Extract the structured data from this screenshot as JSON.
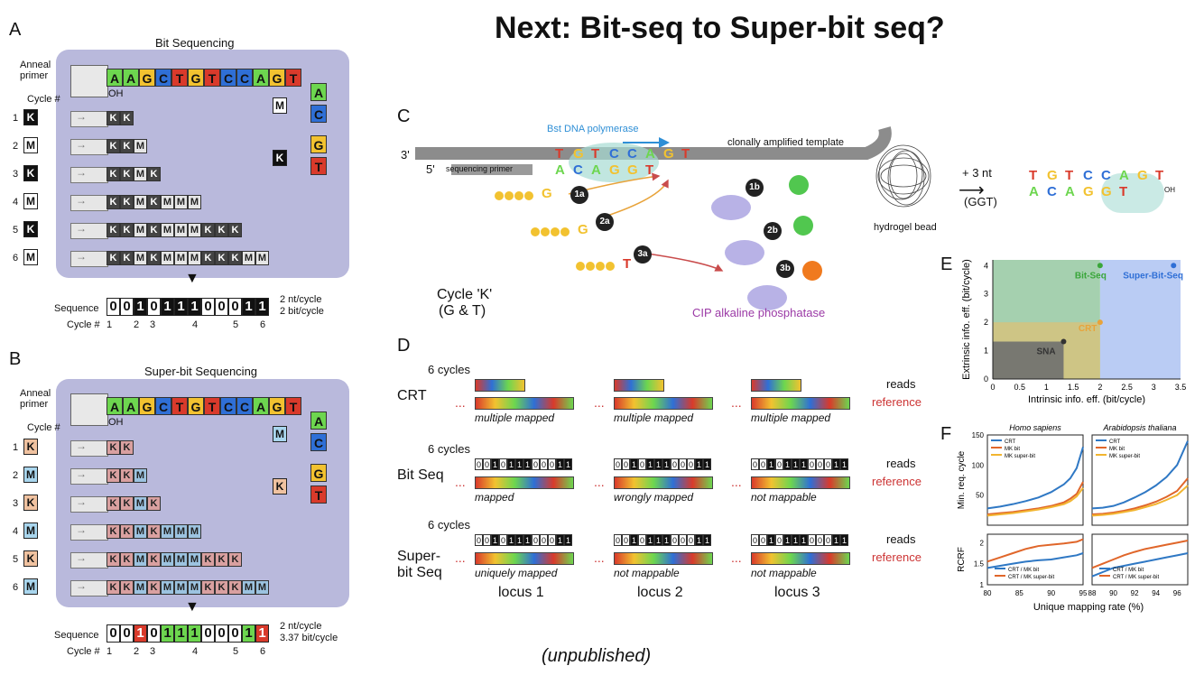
{
  "title": "Next: Bit-seq to Super-bit seq?",
  "footer": "(unpublished)",
  "colors": {
    "A": "#6dd64f",
    "C": "#2f6fd6",
    "G": "#f2c230",
    "T": "#d93a2b",
    "panel": "#b9b9dc",
    "bitseq": "#8fc49b",
    "superbit": "#9db7f0",
    "crt": "#d8c27a",
    "sna": "#6f6f6f"
  },
  "panelA": {
    "label": "A",
    "title": "Bit Sequencing",
    "template": [
      "A",
      "A",
      "G",
      "C",
      "T",
      "G",
      "T",
      "C",
      "C",
      "A",
      "G",
      "T"
    ],
    "anneal_primer": "Anneal primer",
    "oh": "OH",
    "cycle_header": "Cycle #",
    "cycles": [
      {
        "n": "1",
        "letter": "K",
        "extended": [
          "K",
          "K"
        ]
      },
      {
        "n": "2",
        "letter": "M",
        "extended": [
          "K",
          "K",
          "M"
        ]
      },
      {
        "n": "3",
        "letter": "K",
        "extended": [
          "K",
          "K",
          "M",
          "K"
        ]
      },
      {
        "n": "4",
        "letter": "M",
        "extended": [
          "K",
          "K",
          "M",
          "K",
          "M",
          "M",
          "M"
        ]
      },
      {
        "n": "5",
        "letter": "K",
        "extended": [
          "K",
          "K",
          "M",
          "K",
          "M",
          "M",
          "M",
          "K",
          "K",
          "K"
        ]
      },
      {
        "n": "6",
        "letter": "M",
        "extended": [
          "K",
          "K",
          "M",
          "K",
          "M",
          "M",
          "M",
          "K",
          "K",
          "K",
          "M",
          "M"
        ]
      }
    ],
    "legend": [
      {
        "letter": "M",
        "bases": [
          "A",
          "C"
        ]
      },
      {
        "letter": "K",
        "bases": [
          "G",
          "T"
        ]
      }
    ],
    "sequence_label": "Sequence",
    "sequence": [
      "0",
      "0",
      "1",
      "0",
      "1",
      "1",
      "1",
      "0",
      "0",
      "0",
      "1",
      "1"
    ],
    "cycle_label": "Cycle #",
    "cycle_numbers": [
      "1",
      "2",
      "3",
      "4",
      "5",
      "6"
    ],
    "rate1": "2 nt/cycle",
    "rate2": "2 bit/cycle"
  },
  "panelB": {
    "label": "B",
    "title": "Super-bit Sequencing",
    "template": [
      "A",
      "A",
      "G",
      "C",
      "T",
      "G",
      "T",
      "C",
      "C",
      "A",
      "G",
      "T"
    ],
    "anneal_primer": "Anneal primer",
    "oh": "OH",
    "cycle_header": "Cycle #",
    "cycles": [
      {
        "n": "1",
        "letter": "K"
      },
      {
        "n": "2",
        "letter": "M"
      },
      {
        "n": "3",
        "letter": "K"
      },
      {
        "n": "4",
        "letter": "M"
      },
      {
        "n": "5",
        "letter": "K"
      },
      {
        "n": "6",
        "letter": "M"
      }
    ],
    "legend": [
      {
        "letter": "M",
        "bases": [
          "A",
          "C"
        ]
      },
      {
        "letter": "K",
        "bases": [
          "G",
          "T"
        ]
      }
    ],
    "sequence_label": "Sequence",
    "sequence": [
      "0",
      "0",
      "1",
      "0",
      "1",
      "1",
      "1",
      "0",
      "0",
      "0",
      "1",
      "1"
    ],
    "cycle_label": "Cycle #",
    "cycle_numbers": [
      "1",
      "2",
      "3",
      "4",
      "5",
      "6"
    ],
    "rate1": "2 nt/cycle",
    "rate2": "3.37 bit/cycle"
  },
  "panelC": {
    "label": "C",
    "three_prime": "3'",
    "five_prime": "5'",
    "polymerase": "Bst DNA polymerase",
    "template_label": "clonally amplified template",
    "primer_label": "sequencing primer",
    "top_strand": [
      "T",
      "G",
      "T",
      "C",
      "C",
      "A",
      "G",
      "T"
    ],
    "bottom_strand": [
      "A",
      "C",
      "A",
      "G",
      "G",
      "T"
    ],
    "steps": [
      "1a",
      "2a",
      "3a",
      "1b",
      "2b",
      "3b"
    ],
    "nuc_letters": [
      "G",
      "G",
      "T"
    ],
    "cycle_label": "Cycle 'K'",
    "cycle_sub": "(G & T)",
    "phosphatase": "CIP alkaline phosphatase",
    "hydrogel": "hydrogel bead",
    "plus_nt": "+ 3 nt",
    "ggt": "(GGT)",
    "result_top": [
      "T",
      "G",
      "T",
      "C",
      "C",
      "A",
      "G",
      "T"
    ],
    "result_bottom": [
      "A",
      "C",
      "A",
      "G",
      "G",
      "T"
    ],
    "result_oh": "OH"
  },
  "panelD": {
    "label": "D",
    "cycles_label": "6 cycles",
    "rows": [
      {
        "name": "CRT",
        "loci": [
          "multiple mapped",
          "multiple mapped",
          "multiple mapped"
        ]
      },
      {
        "name": "Bit Seq",
        "loci": [
          "mapped",
          "wrongly mapped",
          "not mappable"
        ]
      },
      {
        "name": "Super-bit Seq",
        "loci": [
          "uniquely mapped",
          "not mappable",
          "not mappable"
        ]
      }
    ],
    "reads": "reads",
    "reference": "reference",
    "dots": "...",
    "locus_labels": [
      "locus 1",
      "locus 2",
      "locus 3"
    ],
    "bit_reads": [
      "0",
      "0",
      "1",
      "0",
      "1",
      "1",
      "1",
      "0",
      "0",
      "0",
      "1",
      "1"
    ]
  },
  "panelE": {
    "label": "E",
    "xlabel": "Intrinsic info. eff. (bit/cycle)",
    "ylabel": "Extrinsic info. eff. (bit/cycle)",
    "xticks": [
      "0",
      "0.5",
      "1",
      "1.5",
      "2",
      "2.5",
      "3",
      "3.5"
    ],
    "yticks": [
      "0",
      "1",
      "2",
      "3",
      "4"
    ],
    "regions": [
      {
        "name": "Bit-Seq",
        "x": 2,
        "y": 4
      },
      {
        "name": "Super-Bit-Seq",
        "x": 3.37,
        "y": 4
      },
      {
        "name": "CRT",
        "x": 2,
        "y": 2
      },
      {
        "name": "SNA",
        "x": 1.32,
        "y": 1.32
      }
    ]
  },
  "panelF": {
    "label": "F",
    "species": [
      "Homo sapiens",
      "Arabidopsis thaliana"
    ],
    "ylabel_top": "Min. req. cycle",
    "ylabel_bottom": "RCRF",
    "xlabel": "Unique mapping rate (%)",
    "legend_top": [
      "CRT",
      "MK bit",
      "MK super-bit"
    ],
    "legend_bottom": [
      "CRT / MK bit",
      "CRT / MK super-bit"
    ],
    "left_xticks": [
      "80",
      "85",
      "90",
      "95"
    ],
    "right_xticks": [
      "88",
      "90",
      "92",
      "94",
      "96"
    ],
    "top_yticks": [
      "50",
      "100",
      "150"
    ],
    "bottom_yticks": [
      "1",
      "1.5",
      "2"
    ]
  },
  "chart_data": [
    {
      "type": "scatter",
      "title": "",
      "xlabel": "Intrinsic info. eff. (bit/cycle)",
      "ylabel": "Extrinsic info. eff. (bit/cycle)",
      "xlim": [
        0,
        3.5
      ],
      "ylim": [
        0,
        4.2
      ],
      "series": [
        {
          "name": "Bit-Seq",
          "x": [
            2
          ],
          "y": [
            4
          ]
        },
        {
          "name": "Super-Bit-Seq",
          "x": [
            3.37
          ],
          "y": [
            4
          ]
        },
        {
          "name": "CRT",
          "x": [
            2
          ],
          "y": [
            2
          ]
        },
        {
          "name": "SNA",
          "x": [
            1.32
          ],
          "y": [
            1.32
          ]
        }
      ]
    },
    {
      "type": "line",
      "title": "Homo sapiens",
      "xlabel": "Unique mapping rate (%)",
      "ylabel": "Min. req. cycle",
      "xlim": [
        80,
        95
      ],
      "ylim": [
        0,
        150
      ],
      "x": [
        80,
        82,
        84,
        86,
        88,
        90,
        92,
        93,
        94,
        95
      ],
      "series": [
        {
          "name": "CRT",
          "values": [
            28,
            31,
            35,
            40,
            46,
            55,
            68,
            78,
            95,
            130
          ]
        },
        {
          "name": "MK bit",
          "values": [
            18,
            20,
            22,
            25,
            28,
            32,
            38,
            44,
            52,
            72
          ]
        },
        {
          "name": "MK super-bit",
          "values": [
            16,
            18,
            20,
            23,
            26,
            30,
            35,
            40,
            48,
            62
          ]
        }
      ]
    },
    {
      "type": "line",
      "title": "Arabidopsis thaliana",
      "xlabel": "Unique mapping rate (%)",
      "ylabel": "Min. req. cycle",
      "xlim": [
        88,
        97
      ],
      "ylim": [
        0,
        150
      ],
      "x": [
        88,
        89,
        90,
        91,
        92,
        93,
        94,
        95,
        96,
        97
      ],
      "series": [
        {
          "name": "CRT",
          "values": [
            28,
            29,
            32,
            38,
            46,
            55,
            66,
            80,
            100,
            140
          ]
        },
        {
          "name": "MK bit",
          "values": [
            18,
            19,
            21,
            24,
            28,
            33,
            39,
            47,
            57,
            78
          ]
        },
        {
          "name": "MK super-bit",
          "values": [
            16,
            17,
            19,
            22,
            25,
            30,
            35,
            42,
            50,
            66
          ]
        }
      ]
    },
    {
      "type": "line",
      "title": "Homo sapiens",
      "xlabel": "Unique mapping rate (%)",
      "ylabel": "RCRF",
      "xlim": [
        80,
        95
      ],
      "ylim": [
        1,
        2.2
      ],
      "x": [
        80,
        82,
        84,
        86,
        88,
        90,
        92,
        94,
        95
      ],
      "series": [
        {
          "name": "CRT / MK bit",
          "values": [
            1.4,
            1.45,
            1.5,
            1.55,
            1.58,
            1.6,
            1.65,
            1.7,
            1.75
          ]
        },
        {
          "name": "CRT / MK super-bit",
          "values": [
            1.55,
            1.65,
            1.75,
            1.85,
            1.92,
            1.95,
            1.98,
            2.02,
            2.08
          ]
        }
      ]
    },
    {
      "type": "line",
      "title": "Arabidopsis thaliana",
      "xlabel": "Unique mapping rate (%)",
      "ylabel": "RCRF",
      "xlim": [
        88,
        97
      ],
      "ylim": [
        1,
        2.2
      ],
      "x": [
        88,
        89,
        90,
        91,
        92,
        93,
        94,
        95,
        96,
        97
      ],
      "series": [
        {
          "name": "CRT / MK bit",
          "values": [
            1.2,
            1.3,
            1.4,
            1.45,
            1.5,
            1.55,
            1.6,
            1.65,
            1.7,
            1.75
          ]
        },
        {
          "name": "CRT / MK super-bit",
          "values": [
            1.4,
            1.5,
            1.6,
            1.7,
            1.78,
            1.85,
            1.9,
            1.95,
            2.0,
            2.05
          ]
        }
      ]
    }
  ]
}
